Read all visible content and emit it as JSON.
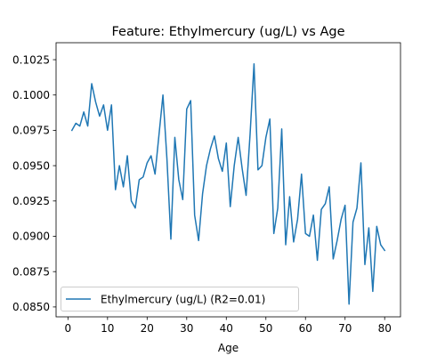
{
  "chart_data": {
    "type": "line",
    "title": "Feature: Ethylmercury (ug/L) vs Age",
    "xlabel": "Age",
    "ylabel": "",
    "xlim": [
      -3,
      84
    ],
    "ylim": [
      0.0843,
      0.1037
    ],
    "xticks": [
      0,
      10,
      20,
      30,
      40,
      50,
      60,
      70,
      80
    ],
    "xtick_labels": [
      "0",
      "10",
      "20",
      "30",
      "40",
      "50",
      "60",
      "70",
      "80"
    ],
    "yticks": [
      0.085,
      0.0875,
      0.09,
      0.0925,
      0.095,
      0.0975,
      0.1,
      0.1025
    ],
    "ytick_labels": [
      "0.0850",
      "0.0875",
      "0.0900",
      "0.0925",
      "0.0950",
      "0.0975",
      "0.1000",
      "0.1025"
    ],
    "grid": false,
    "legend_position": "lower-left",
    "series": [
      {
        "name": "Ethylmercury (ug/L) (R2=0.01)",
        "color": "#1f77b4",
        "x": [
          1,
          2,
          3,
          4,
          5,
          6,
          7,
          8,
          9,
          10,
          11,
          12,
          13,
          14,
          15,
          16,
          17,
          18,
          19,
          20,
          21,
          22,
          23,
          24,
          25,
          26,
          27,
          28,
          29,
          30,
          31,
          32,
          33,
          34,
          35,
          36,
          37,
          38,
          39,
          40,
          41,
          42,
          43,
          44,
          45,
          46,
          47,
          48,
          49,
          50,
          51,
          52,
          53,
          54,
          55,
          56,
          57,
          58,
          59,
          60,
          61,
          62,
          63,
          64,
          65,
          66,
          67,
          68,
          69,
          70,
          71,
          72,
          73,
          74,
          75,
          76,
          77,
          78,
          79,
          80
        ],
        "y": [
          0.0975,
          0.098,
          0.0978,
          0.0988,
          0.0978,
          0.1008,
          0.0995,
          0.0985,
          0.0993,
          0.0975,
          0.0993,
          0.0933,
          0.095,
          0.0935,
          0.0957,
          0.0925,
          0.092,
          0.094,
          0.0942,
          0.0952,
          0.0957,
          0.0944,
          0.0972,
          0.1,
          0.0955,
          0.0898,
          0.097,
          0.094,
          0.0926,
          0.099,
          0.0996,
          0.0915,
          0.0897,
          0.093,
          0.095,
          0.0962,
          0.0971,
          0.0955,
          0.0946,
          0.0966,
          0.0921,
          0.095,
          0.097,
          0.0948,
          0.0929,
          0.0972,
          0.1022,
          0.0947,
          0.095,
          0.097,
          0.0983,
          0.0902,
          0.092,
          0.0976,
          0.0894,
          0.0928,
          0.0896,
          0.0912,
          0.0944,
          0.0902,
          0.09,
          0.0915,
          0.0883,
          0.0919,
          0.0923,
          0.0935,
          0.0884,
          0.0897,
          0.0912,
          0.0922,
          0.0852,
          0.091,
          0.092,
          0.0952,
          0.088,
          0.0906,
          0.0861,
          0.0907,
          0.0894,
          0.089
        ]
      }
    ]
  }
}
